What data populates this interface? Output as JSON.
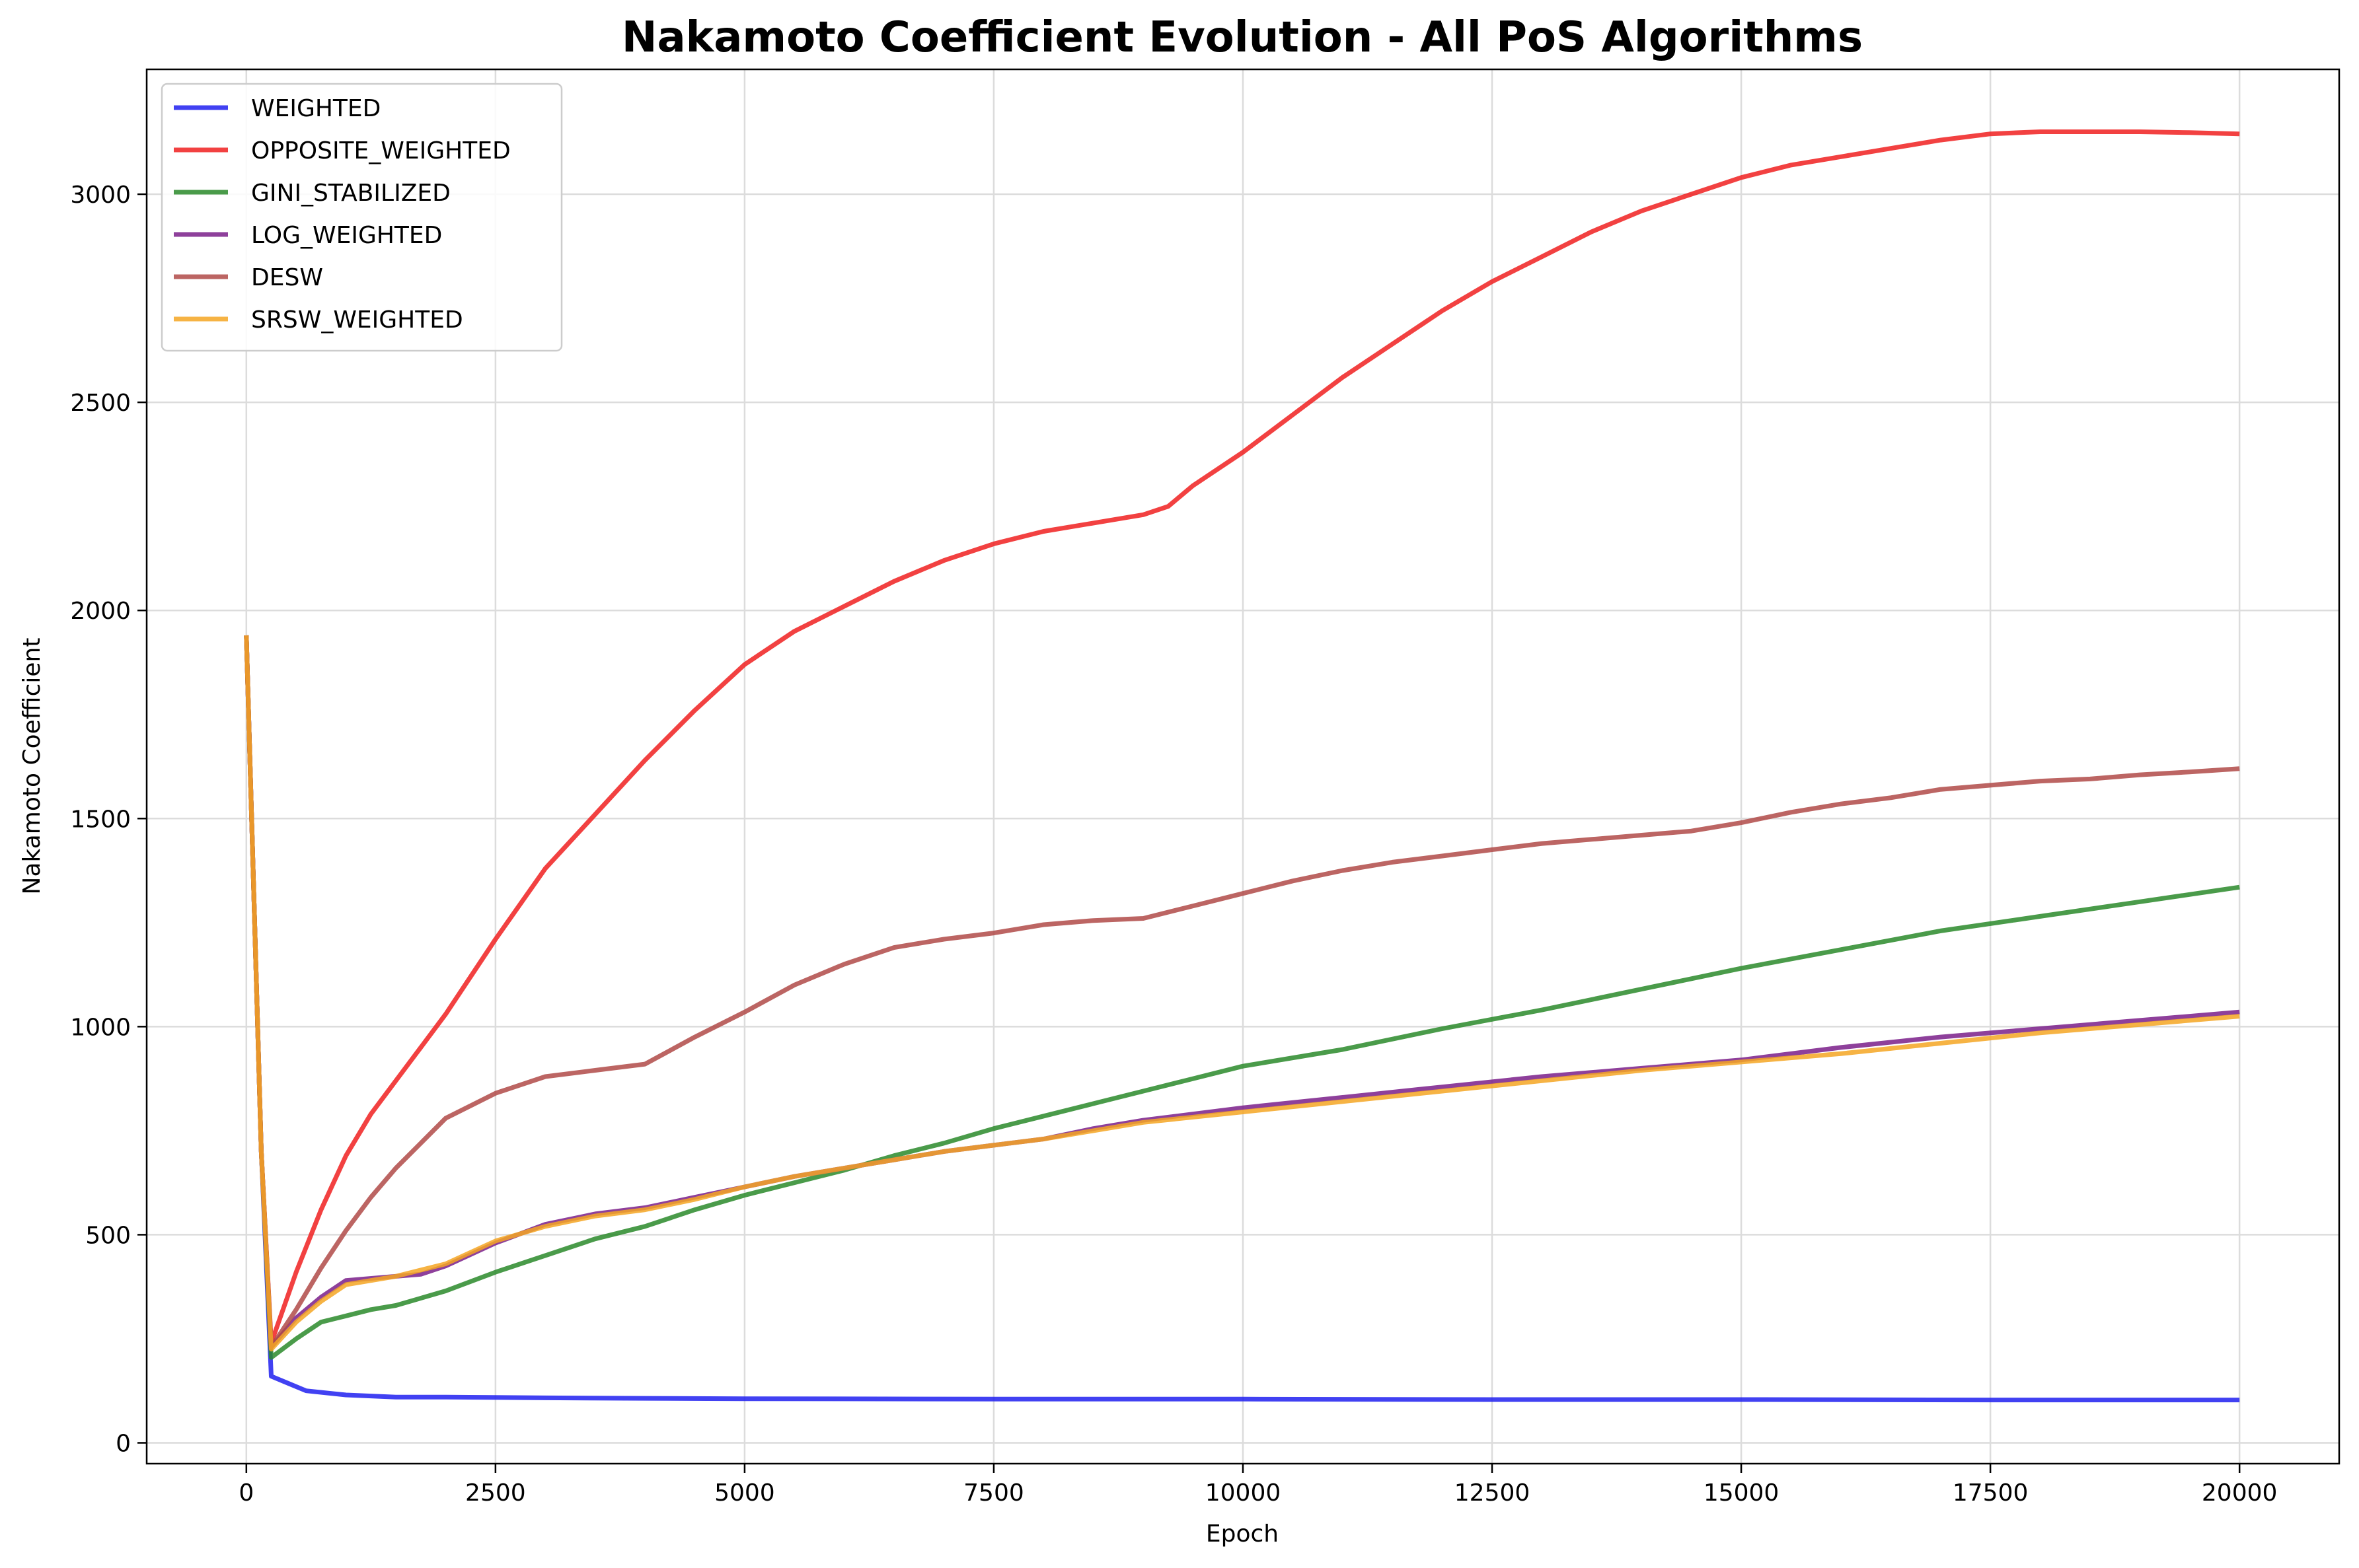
{
  "chart_data": {
    "type": "line",
    "title": "Nakamoto Coefficient Evolution - All PoS Algorithms",
    "xlabel": "Epoch",
    "ylabel": "Nakamoto Coefficient",
    "xlim": [
      -1000,
      21000
    ],
    "ylim": [
      -50,
      3300
    ],
    "xticks": [
      0,
      2500,
      5000,
      7500,
      10000,
      12500,
      15000,
      17500,
      20000
    ],
    "yticks": [
      0,
      500,
      1000,
      1500,
      2000,
      2500,
      3000
    ],
    "grid": true,
    "legend": "top-left",
    "series": [
      {
        "name": "WEIGHTED",
        "color": "#2020f0",
        "x": [
          0,
          150,
          250,
          400,
          600,
          1000,
          1500,
          2000,
          3000,
          4000,
          5000,
          7500,
          10000,
          12500,
          15000,
          17500,
          20000
        ],
        "y": [
          1940,
          700,
          160,
          145,
          125,
          115,
          110,
          110,
          108,
          107,
          106,
          105,
          105,
          104,
          104,
          103,
          103
        ]
      },
      {
        "name": "OPPOSITE_WEIGHTED",
        "color": "#f02020",
        "x": [
          0,
          150,
          250,
          500,
          750,
          1000,
          1250,
          1500,
          1750,
          2000,
          2500,
          3000,
          3500,
          4000,
          4500,
          5000,
          5500,
          6000,
          6500,
          7000,
          7500,
          8000,
          8500,
          9000,
          9250,
          9500,
          10000,
          10500,
          11000,
          11500,
          12000,
          12500,
          13000,
          13500,
          14000,
          14500,
          15000,
          15500,
          16000,
          16500,
          17000,
          17500,
          18000,
          18500,
          19000,
          19500,
          20000
        ],
        "y": [
          1940,
          700,
          240,
          410,
          560,
          690,
          790,
          870,
          950,
          1030,
          1210,
          1380,
          1510,
          1640,
          1760,
          1870,
          1950,
          2010,
          2070,
          2120,
          2160,
          2190,
          2210,
          2230,
          2250,
          2300,
          2380,
          2470,
          2560,
          2640,
          2720,
          2790,
          2850,
          2910,
          2960,
          3000,
          3040,
          3070,
          3090,
          3110,
          3130,
          3145,
          3150,
          3150,
          3150,
          3148,
          3145
        ]
      },
      {
        "name": "GINI_STABILIZED",
        "color": "#2a8a2a",
        "x": [
          0,
          150,
          250,
          500,
          750,
          1000,
          1250,
          1500,
          2000,
          2500,
          3000,
          3500,
          4000,
          4500,
          5000,
          5500,
          6000,
          6500,
          7000,
          7500,
          8000,
          8500,
          9000,
          9500,
          10000,
          11000,
          12000,
          13000,
          14000,
          15000,
          16000,
          17000,
          18000,
          19000,
          20000
        ],
        "y": [
          1940,
          700,
          205,
          250,
          290,
          305,
          320,
          330,
          365,
          410,
          450,
          490,
          520,
          560,
          595,
          625,
          655,
          690,
          720,
          755,
          785,
          815,
          845,
          875,
          905,
          945,
          995,
          1040,
          1090,
          1140,
          1185,
          1230,
          1265,
          1300,
          1335
        ]
      },
      {
        "name": "LOG_WEIGHTED",
        "color": "#7a1f8a",
        "x": [
          0,
          150,
          250,
          500,
          750,
          1000,
          1500,
          1750,
          2000,
          2500,
          3000,
          3500,
          4000,
          4500,
          5000,
          5500,
          6000,
          6500,
          7000,
          7500,
          8000,
          8500,
          9000,
          10000,
          11000,
          12000,
          13000,
          14000,
          15000,
          16000,
          17000,
          18000,
          19000,
          20000
        ],
        "y": [
          1940,
          700,
          230,
          300,
          350,
          390,
          400,
          405,
          425,
          480,
          525,
          550,
          565,
          590,
          615,
          640,
          660,
          680,
          700,
          715,
          730,
          755,
          775,
          805,
          830,
          855,
          880,
          900,
          920,
          950,
          975,
          995,
          1015,
          1035
        ]
      },
      {
        "name": "DESW",
        "color": "#b04a48",
        "x": [
          0,
          150,
          250,
          500,
          750,
          1000,
          1250,
          1500,
          1750,
          2000,
          2500,
          3000,
          3500,
          4000,
          4500,
          5000,
          5500,
          6000,
          6500,
          7000,
          7500,
          8000,
          8500,
          9000,
          9500,
          10000,
          10500,
          11000,
          11500,
          12000,
          12500,
          13000,
          13500,
          14000,
          14500,
          15000,
          15500,
          16000,
          16500,
          17000,
          17500,
          18000,
          18500,
          19000,
          19500,
          20000
        ],
        "y": [
          1940,
          700,
          230,
          320,
          420,
          510,
          590,
          660,
          720,
          780,
          840,
          880,
          895,
          910,
          975,
          1035,
          1100,
          1150,
          1190,
          1210,
          1225,
          1245,
          1255,
          1260,
          1290,
          1320,
          1350,
          1375,
          1395,
          1410,
          1425,
          1440,
          1450,
          1460,
          1470,
          1490,
          1515,
          1535,
          1550,
          1570,
          1580,
          1590,
          1595,
          1605,
          1612,
          1620
        ]
      },
      {
        "name": "SRSW_WEIGHTED",
        "color": "#f5a623",
        "x": [
          0,
          150,
          250,
          500,
          750,
          1000,
          1500,
          2000,
          2500,
          3000,
          3500,
          4000,
          4500,
          5000,
          5500,
          6000,
          6500,
          7000,
          7500,
          8000,
          8500,
          9000,
          10000,
          11000,
          12000,
          13000,
          14000,
          15000,
          16000,
          17000,
          18000,
          19000,
          20000
        ],
        "y": [
          1940,
          700,
          225,
          290,
          340,
          380,
          400,
          430,
          485,
          520,
          545,
          560,
          585,
          615,
          640,
          660,
          680,
          700,
          715,
          730,
          750,
          770,
          795,
          820,
          845,
          870,
          895,
          915,
          935,
          960,
          985,
          1005,
          1025
        ]
      }
    ]
  }
}
